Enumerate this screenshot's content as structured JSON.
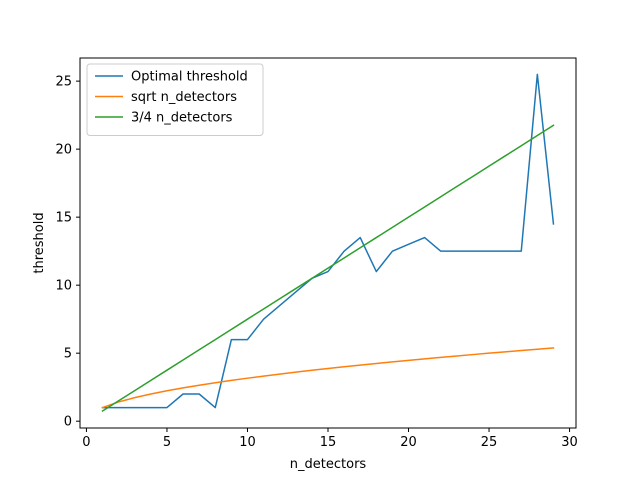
{
  "chart_data": {
    "type": "line",
    "title": "",
    "xlabel": "n_detectors",
    "ylabel": "threshold",
    "xlim": [
      -0.4,
      30.4
    ],
    "ylim": [
      -0.5,
      26.7
    ],
    "xticks": [
      0,
      5,
      10,
      15,
      20,
      25,
      30
    ],
    "yticks": [
      0,
      5,
      10,
      15,
      20,
      25
    ],
    "grid": false,
    "legend_position": "top-left",
    "series": [
      {
        "name": "Optimal threshold",
        "color": "#1f77b4",
        "x": [
          1,
          2,
          3,
          4,
          5,
          6,
          7,
          8,
          9,
          10,
          11,
          12,
          13,
          14,
          15,
          16,
          17,
          18,
          19,
          20,
          21,
          22,
          23,
          24,
          25,
          26,
          27,
          28,
          29
        ],
        "y": [
          1,
          1,
          1,
          1,
          1,
          2,
          2,
          1,
          6,
          6,
          7.5,
          8.5,
          9.5,
          10.5,
          11,
          12.5,
          13.5,
          11,
          12.5,
          13,
          13.5,
          12.5,
          12.5,
          12.5,
          12.5,
          12.5,
          12.5,
          25.5,
          14.5
        ]
      },
      {
        "name": "sqrt n_detectors",
        "color": "#ff7f0e",
        "x": [
          1,
          2,
          3,
          4,
          5,
          6,
          7,
          8,
          9,
          10,
          11,
          12,
          13,
          14,
          15,
          16,
          17,
          18,
          19,
          20,
          21,
          22,
          23,
          24,
          25,
          26,
          27,
          28,
          29
        ],
        "y": [
          1,
          1.414,
          1.732,
          2,
          2.236,
          2.449,
          2.646,
          2.828,
          3,
          3.162,
          3.317,
          3.464,
          3.606,
          3.742,
          3.873,
          4,
          4.123,
          4.243,
          4.359,
          4.472,
          4.583,
          4.69,
          4.796,
          4.899,
          5,
          5.099,
          5.196,
          5.292,
          5.385
        ]
      },
      {
        "name": "3/4 n_detectors",
        "color": "#2ca02c",
        "x": [
          1,
          2,
          3,
          4,
          5,
          6,
          7,
          8,
          9,
          10,
          11,
          12,
          13,
          14,
          15,
          16,
          17,
          18,
          19,
          20,
          21,
          22,
          23,
          24,
          25,
          26,
          27,
          28,
          29
        ],
        "y": [
          0.75,
          1.5,
          2.25,
          3,
          3.75,
          4.5,
          5.25,
          6,
          6.75,
          7.5,
          8.25,
          9,
          9.75,
          10.5,
          11.25,
          12,
          12.75,
          13.5,
          14.25,
          15,
          15.75,
          16.5,
          17.25,
          18,
          18.75,
          19.5,
          20.25,
          21,
          21.75
        ]
      }
    ]
  }
}
